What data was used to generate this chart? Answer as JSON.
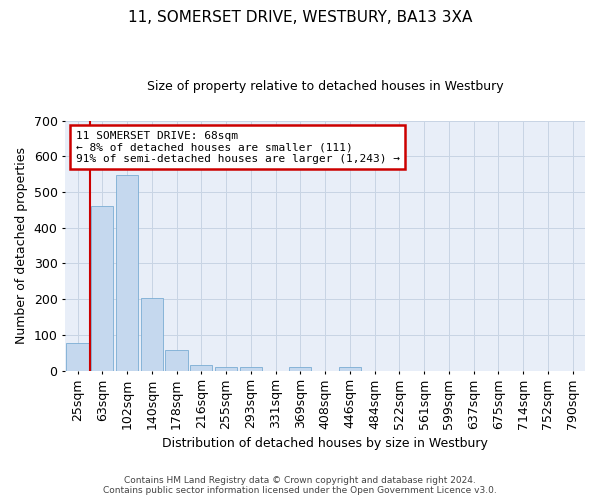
{
  "title": "11, SOMERSET DRIVE, WESTBURY, BA13 3XA",
  "subtitle": "Size of property relative to detached houses in Westbury",
  "xlabel": "Distribution of detached houses by size in Westbury",
  "ylabel": "Number of detached properties",
  "bar_color": "#c5d8ee",
  "bar_edgecolor": "#7aadd4",
  "grid_color": "#c8d4e4",
  "background_color": "#e8eef8",
  "categories": [
    "25sqm",
    "63sqm",
    "102sqm",
    "140sqm",
    "178sqm",
    "216sqm",
    "255sqm",
    "293sqm",
    "331sqm",
    "369sqm",
    "408sqm",
    "446sqm",
    "484sqm",
    "522sqm",
    "561sqm",
    "599sqm",
    "637sqm",
    "675sqm",
    "714sqm",
    "752sqm",
    "790sqm"
  ],
  "values": [
    78,
    462,
    548,
    204,
    57,
    15,
    9,
    9,
    0,
    9,
    0,
    9,
    0,
    0,
    0,
    0,
    0,
    0,
    0,
    0,
    0
  ],
  "ylim": [
    0,
    700
  ],
  "yticks": [
    0,
    100,
    200,
    300,
    400,
    500,
    600,
    700
  ],
  "property_line_index": 1,
  "annotation_text": "11 SOMERSET DRIVE: 68sqm\n← 8% of detached houses are smaller (111)\n91% of semi-detached houses are larger (1,243) →",
  "annotation_box_color": "#ffffff",
  "annotation_border_color": "#cc0000",
  "vline_color": "#cc0000",
  "footer_line1": "Contains HM Land Registry data © Crown copyright and database right 2024.",
  "footer_line2": "Contains public sector information licensed under the Open Government Licence v3.0."
}
